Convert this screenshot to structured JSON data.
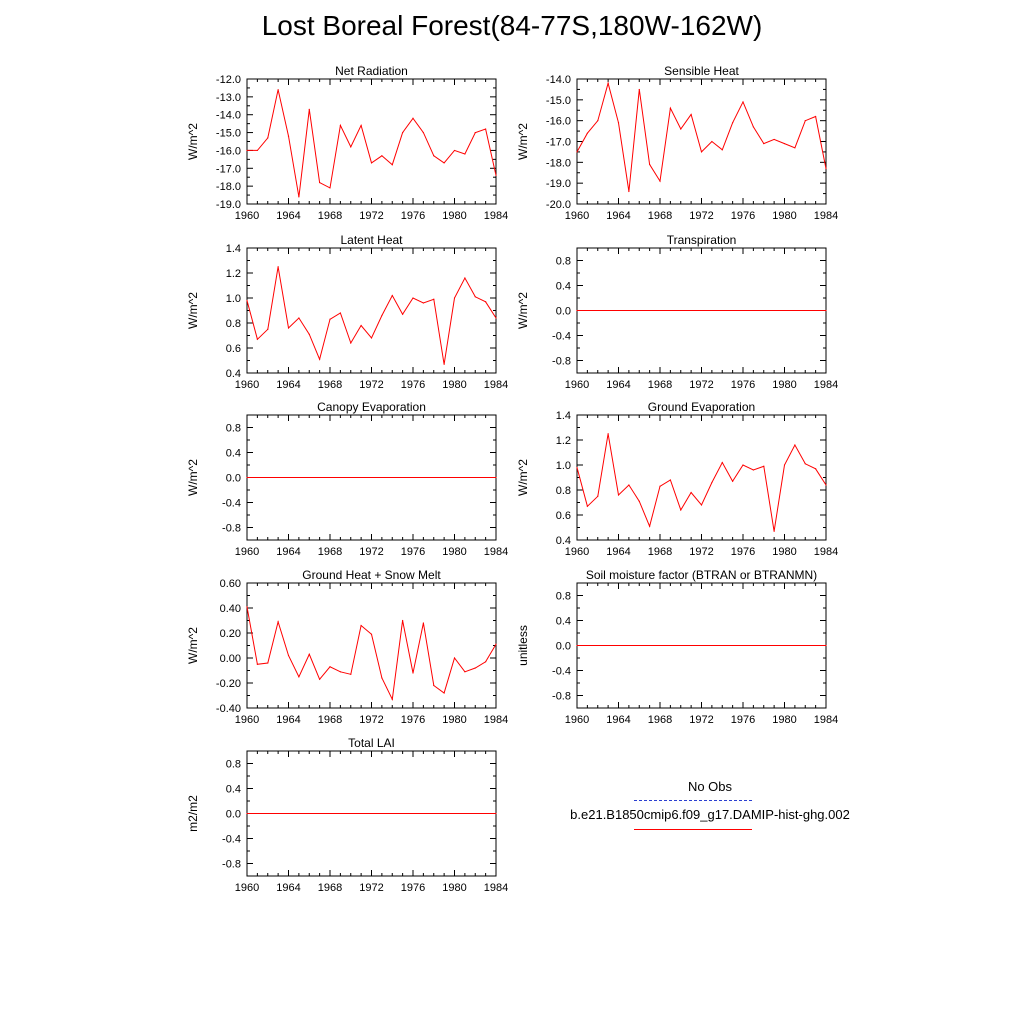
{
  "page_title": "Lost Boreal Forest(84-77S,180W-162W)",
  "line_color": "#ff0000",
  "obs_line_color": "#2b3fd1",
  "legend": {
    "obs_label": "No Obs",
    "model_label": "b.e21.B1850cmip6.f09_g17.DAMIP-hist-ghg.002"
  },
  "chart_data": [
    {
      "type": "line",
      "title": "Net Radiation",
      "ylabel": "W/m^2",
      "xlim": [
        1960,
        1984
      ],
      "ylim": [
        -19,
        -12
      ],
      "xticks": [
        "1960",
        "1964",
        "1968",
        "1972",
        "1976",
        "1980",
        "1984"
      ],
      "yticks": [
        "-12.0",
        "-13.0",
        "-14.0",
        "-15.0",
        "-16.0",
        "-17.0",
        "-18.0",
        "-19.0"
      ],
      "x": [
        1960,
        1961,
        1962,
        1963,
        1964,
        1965,
        1966,
        1967,
        1968,
        1969,
        1970,
        1971,
        1972,
        1973,
        1974,
        1975,
        1976,
        1977,
        1978,
        1979,
        1980,
        1981,
        1982,
        1983,
        1984
      ],
      "y": [
        -16.0,
        -16.0,
        -15.3,
        -12.6,
        -15.2,
        -18.6,
        -13.7,
        -17.8,
        -18.1,
        -14.6,
        -15.8,
        -14.6,
        -16.7,
        -16.3,
        -16.8,
        -15.0,
        -14.2,
        -15.0,
        -16.3,
        -16.7,
        -16.0,
        -16.2,
        -15.0,
        -14.8,
        -17.4
      ]
    },
    {
      "type": "line",
      "title": "Sensible Heat",
      "ylabel": "W/m^2",
      "xlim": [
        1960,
        1984
      ],
      "ylim": [
        -20,
        -14
      ],
      "xticks": [
        "1960",
        "1964",
        "1968",
        "1972",
        "1976",
        "1980",
        "1984"
      ],
      "yticks": [
        "-14.0",
        "-15.0",
        "-16.0",
        "-17.0",
        "-18.0",
        "-19.0",
        "-20.0"
      ],
      "x": [
        1960,
        1961,
        1962,
        1963,
        1964,
        1965,
        1966,
        1967,
        1968,
        1969,
        1970,
        1971,
        1972,
        1973,
        1974,
        1975,
        1976,
        1977,
        1978,
        1979,
        1980,
        1981,
        1982,
        1983,
        1984
      ],
      "y": [
        -17.5,
        -16.6,
        -16.0,
        -14.2,
        -16.1,
        -19.4,
        -14.5,
        -18.1,
        -18.9,
        -15.4,
        -16.4,
        -15.7,
        -17.5,
        -17.0,
        -17.4,
        -16.1,
        -15.1,
        -16.3,
        -17.1,
        -16.9,
        -17.1,
        -17.3,
        -16.0,
        -15.8,
        -18.3
      ]
    },
    {
      "type": "line",
      "title": "Latent Heat",
      "ylabel": "W/m^2",
      "xlim": [
        1960,
        1984
      ],
      "ylim": [
        0.4,
        1.4
      ],
      "xticks": [
        "1960",
        "1964",
        "1968",
        "1972",
        "1976",
        "1980",
        "1984"
      ],
      "yticks": [
        "1.4",
        "1.2",
        "1.0",
        "0.8",
        "0.6",
        "0.4"
      ],
      "x": [
        1960,
        1961,
        1962,
        1963,
        1964,
        1965,
        1966,
        1967,
        1968,
        1969,
        1970,
        1971,
        1972,
        1973,
        1974,
        1975,
        1976,
        1977,
        1978,
        1979,
        1980,
        1981,
        1982,
        1983,
        1984
      ],
      "y": [
        0.98,
        0.67,
        0.75,
        1.25,
        0.76,
        0.84,
        0.71,
        0.51,
        0.83,
        0.88,
        0.64,
        0.78,
        0.68,
        0.86,
        1.02,
        0.87,
        1.0,
        0.96,
        0.99,
        0.47,
        1.0,
        1.16,
        1.01,
        0.97,
        0.84
      ]
    },
    {
      "type": "line",
      "title": "Transpiration",
      "ylabel": "W/m^2",
      "xlim": [
        1960,
        1984
      ],
      "ylim": [
        -1.0,
        1.0
      ],
      "xticks": [
        "1960",
        "1964",
        "1968",
        "1972",
        "1976",
        "1980",
        "1984"
      ],
      "yticks": [
        "0.8",
        "0.4",
        "0.0",
        "-0.4",
        "-0.8"
      ],
      "x": [
        1960,
        1984
      ],
      "y": [
        0.0,
        0.0
      ]
    },
    {
      "type": "line",
      "title": "Canopy Evaporation",
      "ylabel": "W/m^2",
      "xlim": [
        1960,
        1984
      ],
      "ylim": [
        -1.0,
        1.0
      ],
      "xticks": [
        "1960",
        "1964",
        "1968",
        "1972",
        "1976",
        "1980",
        "1984"
      ],
      "yticks": [
        "0.8",
        "0.4",
        "0.0",
        "-0.4",
        "-0.8"
      ],
      "x": [
        1960,
        1984
      ],
      "y": [
        0.0,
        0.0
      ]
    },
    {
      "type": "line",
      "title": "Ground Evaporation",
      "ylabel": "W/m^2",
      "xlim": [
        1960,
        1984
      ],
      "ylim": [
        0.4,
        1.4
      ],
      "xticks": [
        "1960",
        "1964",
        "1968",
        "1972",
        "1976",
        "1980",
        "1984"
      ],
      "yticks": [
        "1.4",
        "1.2",
        "1.0",
        "0.8",
        "0.6",
        "0.4"
      ],
      "x": [
        1960,
        1961,
        1962,
        1963,
        1964,
        1965,
        1966,
        1967,
        1968,
        1969,
        1970,
        1971,
        1972,
        1973,
        1974,
        1975,
        1976,
        1977,
        1978,
        1979,
        1980,
        1981,
        1982,
        1983,
        1984
      ],
      "y": [
        0.98,
        0.67,
        0.75,
        1.25,
        0.76,
        0.84,
        0.71,
        0.51,
        0.83,
        0.88,
        0.64,
        0.78,
        0.68,
        0.86,
        1.02,
        0.87,
        1.0,
        0.96,
        0.99,
        0.47,
        1.0,
        1.16,
        1.01,
        0.97,
        0.84
      ]
    },
    {
      "type": "line",
      "title": "Ground Heat + Snow Melt",
      "ylabel": "W/m^2",
      "xlim": [
        1960,
        1984
      ],
      "ylim": [
        -0.4,
        0.6
      ],
      "xticks": [
        "1960",
        "1964",
        "1968",
        "1972",
        "1976",
        "1980",
        "1984"
      ],
      "yticks": [
        "0.60",
        "0.40",
        "0.20",
        "0.00",
        "-0.20",
        "-0.40"
      ],
      "x": [
        1960,
        1961,
        1962,
        1963,
        1964,
        1965,
        1966,
        1967,
        1968,
        1969,
        1970,
        1971,
        1972,
        1973,
        1974,
        1975,
        1976,
        1977,
        1978,
        1979,
        1980,
        1981,
        1982,
        1983,
        1984
      ],
      "y": [
        0.41,
        -0.05,
        -0.04,
        0.29,
        0.02,
        -0.15,
        0.03,
        -0.17,
        -0.07,
        -0.11,
        -0.13,
        0.26,
        0.19,
        -0.16,
        -0.33,
        0.3,
        -0.12,
        0.28,
        -0.22,
        -0.28,
        0.0,
        -0.11,
        -0.08,
        -0.03,
        0.11
      ]
    },
    {
      "type": "line",
      "title": "Soil moisture factor (BTRAN or BTRANMN)",
      "ylabel": "unitless",
      "xlim": [
        1960,
        1984
      ],
      "ylim": [
        -1.0,
        1.0
      ],
      "xticks": [
        "1960",
        "1964",
        "1968",
        "1972",
        "1976",
        "1980",
        "1984"
      ],
      "yticks": [
        "0.8",
        "0.4",
        "0.0",
        "-0.4",
        "-0.8"
      ],
      "x": [
        1960,
        1984
      ],
      "y": [
        0.0,
        0.0
      ]
    },
    {
      "type": "line",
      "title": "Total LAI",
      "ylabel": "m2/m2",
      "xlim": [
        1960,
        1984
      ],
      "ylim": [
        -1.0,
        1.0
      ],
      "xticks": [
        "1960",
        "1964",
        "1968",
        "1972",
        "1976",
        "1980",
        "1984"
      ],
      "yticks": [
        "0.8",
        "0.4",
        "0.0",
        "-0.4",
        "-0.8"
      ],
      "x": [
        1960,
        1984
      ],
      "y": [
        0.0,
        0.0
      ]
    }
  ]
}
